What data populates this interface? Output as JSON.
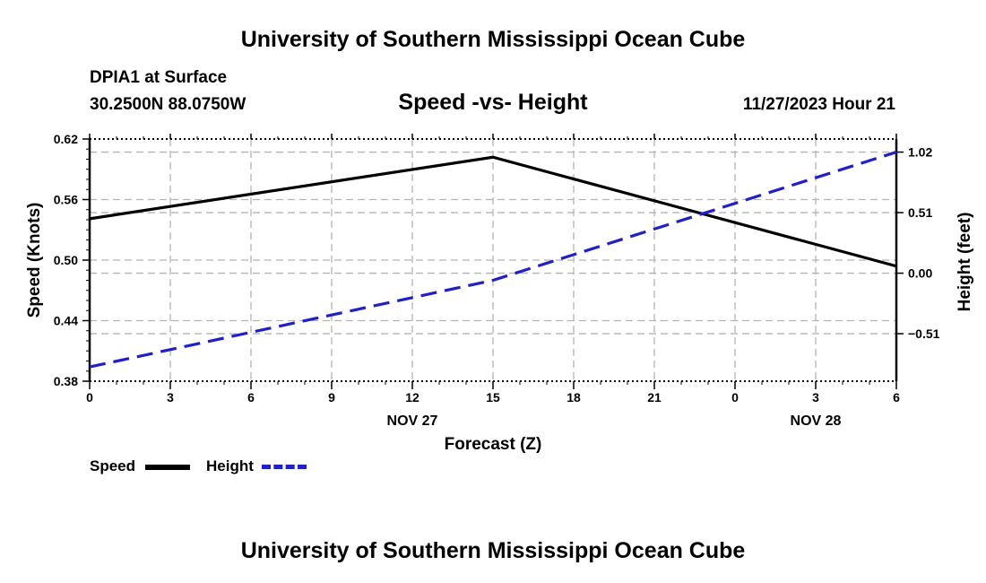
{
  "header": {
    "title": "University of Southern Mississippi Ocean Cube",
    "station": "DPIA1 at Surface",
    "coords": "30.2500N  88.0750W",
    "date": "11/27/2023 Hour 21",
    "footer_title": "University of Southern Mississippi Ocean Cube"
  },
  "chart_data": {
    "type": "line",
    "title": "Speed -vs- Height",
    "xlabel": "Forecast (Z)",
    "ylabel_left": "Speed (Knots)",
    "ylabel_right": "Height (feet)",
    "x_hours": [
      0,
      3,
      6,
      9,
      12,
      15,
      18,
      21,
      24,
      27,
      30
    ],
    "x_tick_labels": [
      "0",
      "3",
      "6",
      "9",
      "12",
      "15",
      "18",
      "21",
      "0",
      "3",
      "6"
    ],
    "date_labels": [
      {
        "label": "NOV 27",
        "at_hour": 12
      },
      {
        "label": "NOV 28",
        "at_hour": 27
      }
    ],
    "xlim": [
      0,
      30
    ],
    "ylim_left": [
      0.38,
      0.62
    ],
    "yticks_left": [
      "0.62",
      "0.56",
      "0.50",
      "0.44",
      "0.38"
    ],
    "ylim_right": [
      -0.91,
      1.13
    ],
    "yticks_right": [
      {
        "value": 1.02,
        "label": "1.02"
      },
      {
        "value": 0.51,
        "label": "0.51"
      },
      {
        "value": 0.0,
        "label": "0.00"
      },
      {
        "value": -0.51,
        "label": "−0.51"
      }
    ],
    "grid": true,
    "series": [
      {
        "name": "Speed",
        "axis": "left",
        "color": "#000000",
        "style": "solid",
        "x": [
          0,
          15,
          30
        ],
        "values": [
          0.541,
          0.602,
          0.494
        ]
      },
      {
        "name": "Height",
        "axis": "right",
        "color": "#1f1fcc",
        "style": "dashed",
        "x": [
          0,
          15,
          30
        ],
        "values": [
          -0.79,
          -0.06,
          1.02
        ]
      }
    ],
    "legend": [
      {
        "label": "Speed",
        "color": "#000000",
        "style": "solid"
      },
      {
        "label": "Height",
        "color": "#1f1fcc",
        "style": "dashed"
      }
    ]
  }
}
